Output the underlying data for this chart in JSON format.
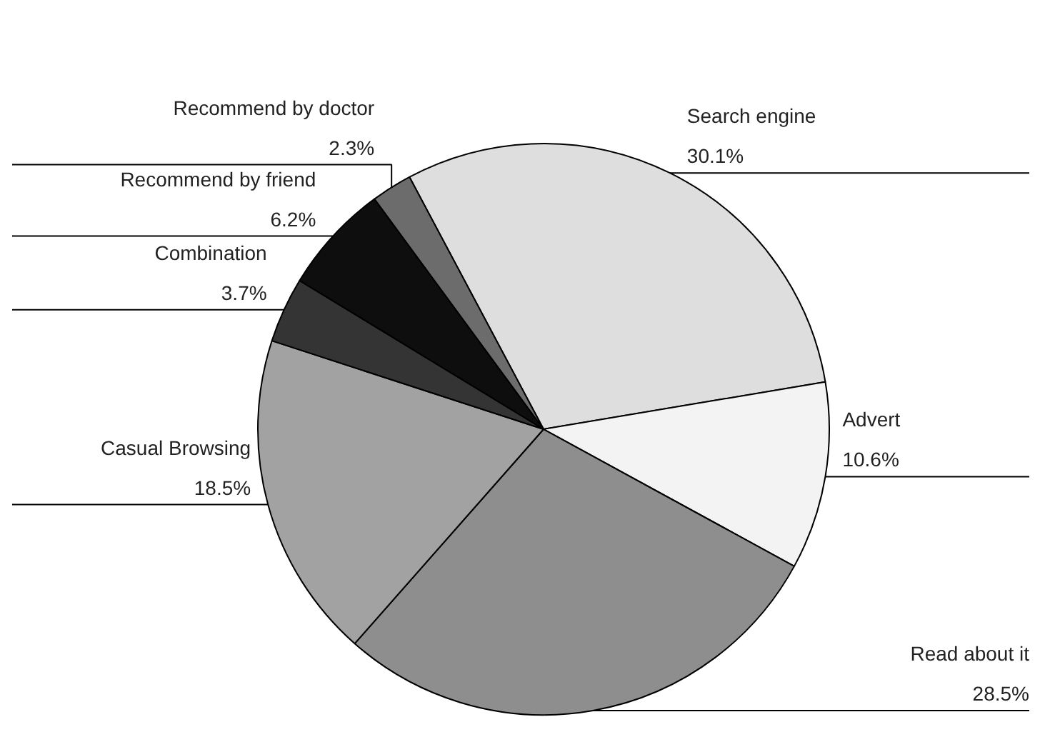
{
  "chart_data": {
    "type": "pie",
    "categories": [
      "Search engine",
      "Advert",
      "Read about it",
      "Casual Browsing",
      "Combination",
      "Recommend by friend",
      "Recommend by doctor"
    ],
    "values": [
      30.1,
      10.6,
      28.5,
      18.5,
      3.7,
      6.2,
      2.3
    ],
    "colors": [
      "#dedede",
      "#f3f3f3",
      "#8e8e8e",
      "#a2a2a2",
      "#343434",
      "#0e0e0e",
      "#6c6c6c"
    ],
    "value_labels": [
      "30.1%",
      "10.6%",
      "28.5%",
      "18.5%",
      "3.7%",
      "6.2%",
      "2.3%"
    ]
  }
}
